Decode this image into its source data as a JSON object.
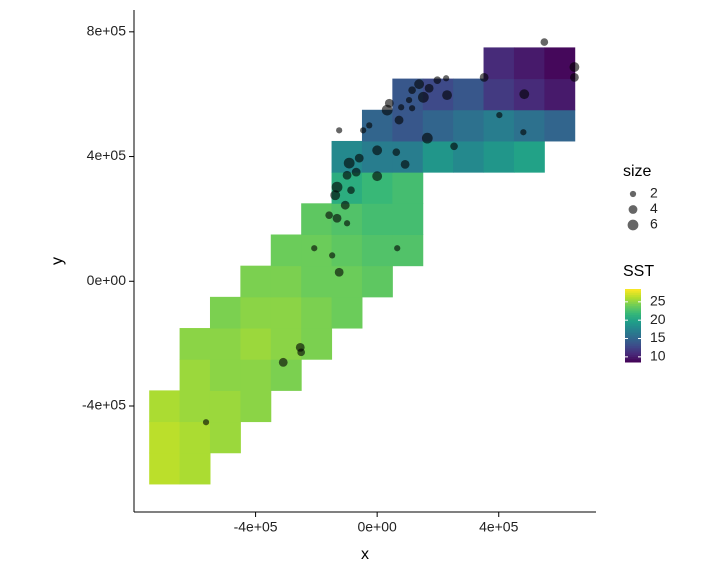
{
  "chart_data": {
    "type": "scatter",
    "x_label": "x",
    "y_label": "y",
    "xlim": [
      -800000,
      720000
    ],
    "ylim": [
      -740000,
      870000
    ],
    "xticks": [
      {
        "value": -400000,
        "label": "-4e+05"
      },
      {
        "value": 0,
        "label": "0e+00"
      },
      {
        "value": 400000,
        "label": "4e+05"
      }
    ],
    "yticks": [
      {
        "value": -400000,
        "label": "-4e+05"
      },
      {
        "value": 0,
        "label": "0e+00"
      },
      {
        "value": 400000,
        "label": "4e+05"
      },
      {
        "value": 800000,
        "label": "8e+05"
      }
    ],
    "field": {
      "name": "SST",
      "color_limits": [
        8.6,
        28.5
      ],
      "ticks": [
        10,
        15,
        20,
        25
      ],
      "x": [
        -700000,
        -600000,
        -700000,
        -600000,
        -500000,
        -700000,
        -600000,
        -500000,
        -400000,
        -600000,
        -500000,
        -400000,
        -300000,
        -600000,
        -500000,
        -400000,
        -300000,
        -200000,
        -500000,
        -400000,
        -300000,
        -200000,
        -100000,
        -400000,
        -300000,
        -200000,
        -100000,
        0,
        -300000,
        -200000,
        -100000,
        0,
        100000,
        -200000,
        -100000,
        0,
        100000,
        -100000,
        0,
        100000,
        -100000,
        0,
        100000,
        200000,
        300000,
        400000,
        500000,
        0,
        100000,
        200000,
        300000,
        400000,
        500000,
        600000,
        100000,
        200000,
        300000,
        400000,
        500000,
        600000,
        400000,
        500000,
        600000
      ],
      "y": [
        -600000,
        -600000,
        -500000,
        -500000,
        -500000,
        -400000,
        -400000,
        -400000,
        -400000,
        -300000,
        -300000,
        -300000,
        -300000,
        -200000,
        -200000,
        -200000,
        -200000,
        -200000,
        -100000,
        -100000,
        -100000,
        -100000,
        -100000,
        0,
        0,
        0,
        0,
        0,
        100000,
        100000,
        100000,
        100000,
        100000,
        200000,
        200000,
        200000,
        200000,
        300000,
        300000,
        300000,
        400000,
        400000,
        400000,
        400000,
        400000,
        400000,
        400000,
        500000,
        500000,
        500000,
        500000,
        500000,
        500000,
        500000,
        600000,
        600000,
        600000,
        600000,
        600000,
        600000,
        700000,
        700000,
        700000
      ],
      "values": [
        26.5,
        26,
        26.5,
        26,
        25.5,
        26,
        25.5,
        25.5,
        25,
        25.5,
        25,
        25,
        24.5,
        25,
        25,
        25.5,
        25,
        24.5,
        24.5,
        25,
        25,
        24.5,
        24,
        24.5,
        24.5,
        24,
        24,
        23.5,
        24,
        24,
        23.5,
        23,
        23,
        23.5,
        23,
        22.5,
        22.5,
        21,
        22,
        22.5,
        18,
        17,
        17,
        19,
        18,
        19,
        20,
        15,
        14,
        15,
        16,
        17,
        16,
        15,
        14,
        13,
        14,
        12,
        11,
        10,
        11,
        10,
        9
      ]
    },
    "size_legend": {
      "name": "size",
      "values": [
        2,
        4,
        6
      ]
    },
    "points": {
      "color": "#000000",
      "x": [
        649000,
        649000,
        550000,
        352000,
        484000,
        481000,
        402000,
        253000,
        165000,
        230000,
        227000,
        198000,
        138000,
        152000,
        171000,
        115000,
        105000,
        79000,
        33000,
        40000,
        72000,
        63000,
        92000,
        0,
        -59000,
        -92000,
        -99000,
        0,
        -69000,
        -132000,
        -138000,
        -105000,
        -132000,
        -158000,
        -99000,
        -86000,
        -46000,
        -125000,
        -207000,
        -148000,
        66000,
        -125000,
        -253000,
        -250000,
        -309000,
        -563000,
        -26000,
        115000
      ],
      "y": [
        687000,
        654000,
        767000,
        654000,
        600000,
        478000,
        533000,
        433000,
        459000,
        597000,
        651000,
        645000,
        632000,
        590000,
        619000,
        613000,
        581000,
        558000,
        549000,
        571000,
        517000,
        414000,
        375000,
        420000,
        395000,
        379000,
        340000,
        337000,
        350000,
        302000,
        276000,
        244000,
        202000,
        212000,
        186000,
        292000,
        484000,
        484000,
        106000,
        83000,
        106000,
        29000,
        -212000,
        -228000,
        -260000,
        -452000,
        500000,
        555000
      ],
      "size": [
        5,
        4,
        3,
        4,
        5,
        2,
        2,
        3,
        6,
        5,
        2,
        3,
        5,
        6,
        4,
        3,
        2,
        2,
        6,
        4,
        4,
        3,
        4,
        5,
        4,
        6,
        4,
        5,
        4,
        6,
        5,
        4,
        4,
        3,
        2,
        3,
        2,
        2,
        2,
        2,
        2,
        4,
        4,
        3,
        4,
        2,
        2,
        2
      ]
    }
  }
}
